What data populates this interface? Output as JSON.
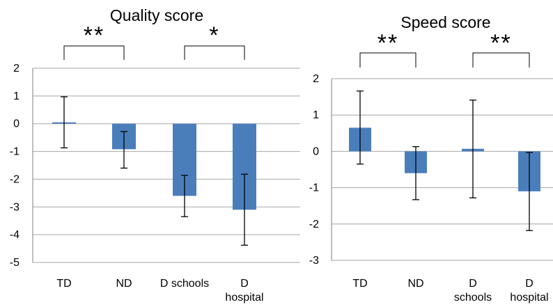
{
  "chart_data": [
    {
      "type": "bar",
      "title": "Quality score",
      "categories": [
        [
          "TD"
        ],
        [
          "ND"
        ],
        [
          "D schools"
        ],
        [
          "D",
          "hospital"
        ]
      ],
      "values": [
        0.05,
        -0.92,
        -2.6,
        -3.1
      ],
      "error_low": [
        -0.87,
        -1.6,
        -3.35,
        -4.38
      ],
      "error_high": [
        0.97,
        -0.28,
        -1.86,
        -1.82
      ],
      "ylim": [
        -5,
        2
      ],
      "yticks": [
        "2",
        "1",
        "0",
        "-1",
        "-2",
        "-3",
        "-4",
        "-5"
      ],
      "grid": true,
      "color": "#4a7ebb",
      "significance": [
        {
          "between": [
            0,
            1
          ],
          "label": "**"
        },
        {
          "between": [
            2,
            3
          ],
          "label": "*"
        }
      ]
    },
    {
      "type": "bar",
      "title": "Speed score",
      "categories": [
        [
          "TD"
        ],
        [
          "ND"
        ],
        [
          "D",
          "schools"
        ],
        [
          "D",
          "hospital"
        ]
      ],
      "values": [
        0.65,
        -0.6,
        0.07,
        -1.1
      ],
      "error_low": [
        -0.35,
        -1.33,
        -1.28,
        -2.18
      ],
      "error_high": [
        1.66,
        0.13,
        1.41,
        -0.03
      ],
      "ylim": [
        -3,
        2
      ],
      "yticks": [
        "2",
        "1",
        "0",
        "-1",
        "-2",
        "-3"
      ],
      "grid": true,
      "color": "#4a7ebb",
      "significance": [
        {
          "between": [
            0,
            1
          ],
          "label": "**"
        },
        {
          "between": [
            2,
            3
          ],
          "label": "**"
        }
      ]
    }
  ]
}
